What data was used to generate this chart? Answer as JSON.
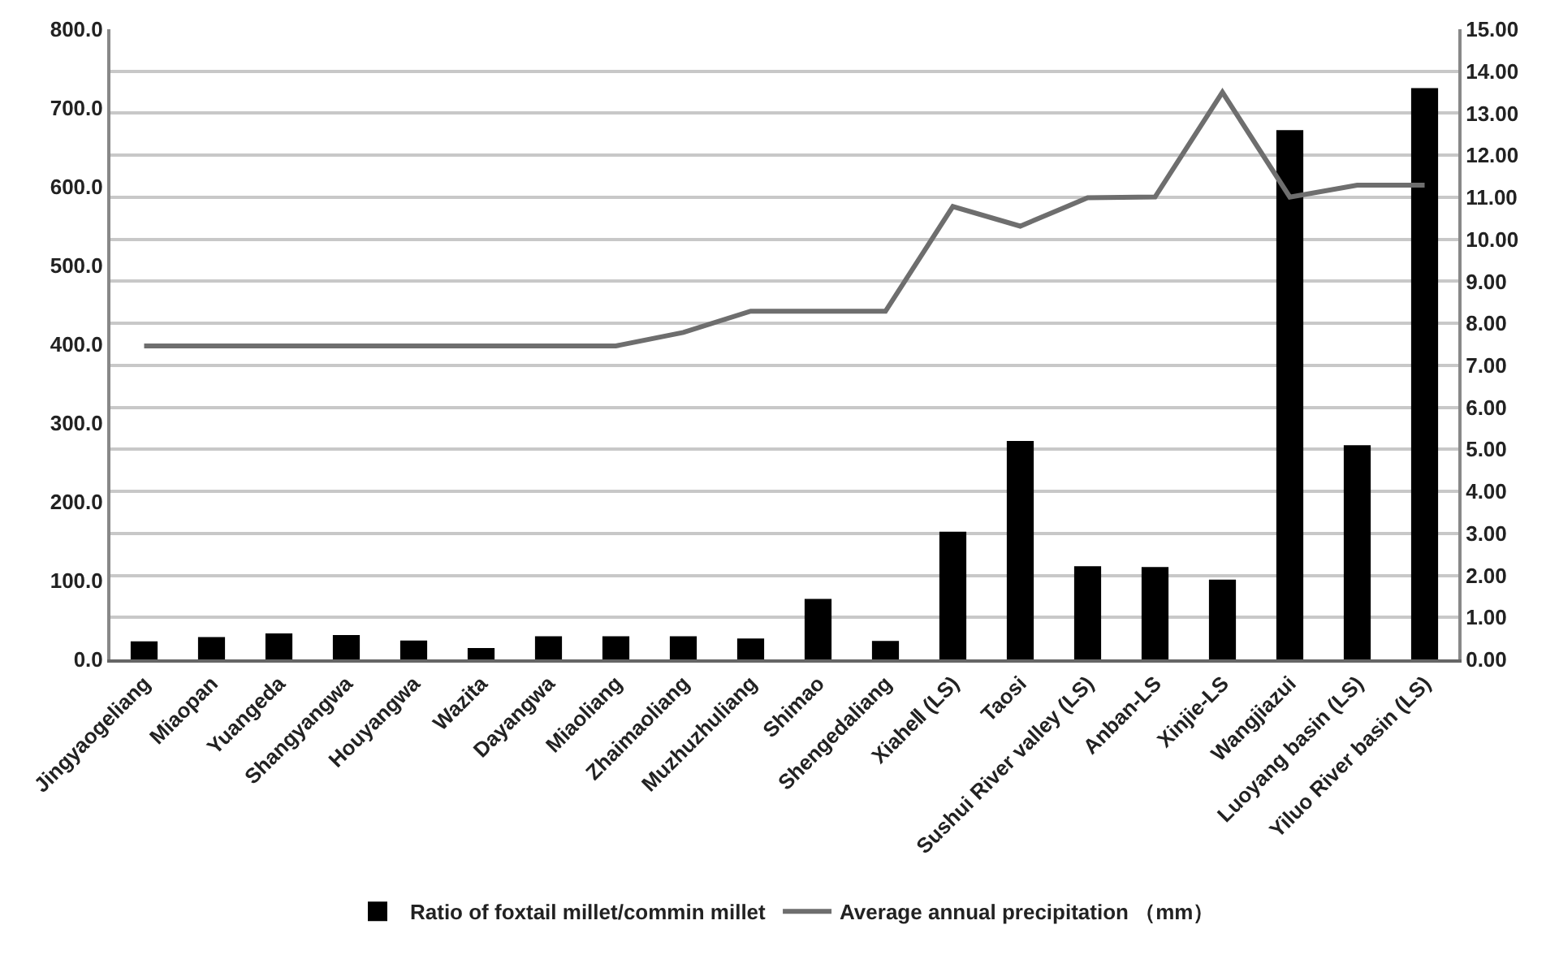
{
  "chart_data": {
    "type": "bar",
    "categories": [
      "Jingyaogeliang",
      "Miaopan",
      "Yuangeda",
      "Shangyangwa",
      "Houyangwa",
      "Wazita",
      "Dayangwa",
      "Miaoliang",
      "Zhaimaoliang",
      "Muzhuzhuliang",
      "Shimao",
      "Shengedaliang",
      "XiaheⅡ (LS)",
      "Taosi",
      "Sushui River valley (LS)",
      "Anban-LS",
      "Xinjie-LS",
      "Wangjiazui",
      "Luoyang basin (LS)",
      "Yiluo River basin (LS)"
    ],
    "series": [
      {
        "name": "Ratio of foxtail millet/commin millet",
        "axis": "y2",
        "color": "#000000",
        "values": [
          0.43,
          0.53,
          0.62,
          0.58,
          0.45,
          0.27,
          0.55,
          0.55,
          0.55,
          0.5,
          1.44,
          0.44,
          3.04,
          5.2,
          2.22,
          2.2,
          1.9,
          12.6,
          5.1,
          13.6
        ]
      },
      {
        "name": "Average annual precipitation （mm）",
        "type": "line",
        "axis": "y",
        "color": "#6e6e6e",
        "values": [
          398,
          398,
          398,
          398,
          398,
          398,
          398,
          398,
          415,
          442,
          442,
          442,
          575,
          550,
          586,
          587,
          720,
          587,
          602,
          602
        ]
      }
    ],
    "ylim": [
      0,
      800
    ],
    "yticks": [
      {
        "value": 0,
        "label": "0.0"
      },
      {
        "value": 100,
        "label": "100.0"
      },
      {
        "value": 200,
        "label": "200.0"
      },
      {
        "value": 300,
        "label": "300.0"
      },
      {
        "value": 400,
        "label": "400.0"
      },
      {
        "value": 500,
        "label": "500.0"
      },
      {
        "value": 600,
        "label": "600.0"
      },
      {
        "value": 700,
        "label": "700.0"
      },
      {
        "value": 800,
        "label": "800.0"
      }
    ],
    "y2lim": [
      0,
      15
    ],
    "y2ticks": [
      {
        "value": 0,
        "label": "0.00"
      },
      {
        "value": 1,
        "label": "1.00"
      },
      {
        "value": 2,
        "label": "2.00"
      },
      {
        "value": 3,
        "label": "3.00"
      },
      {
        "value": 4,
        "label": "4.00"
      },
      {
        "value": 5,
        "label": "5.00"
      },
      {
        "value": 6,
        "label": "6.00"
      },
      {
        "value": 7,
        "label": "7.00"
      },
      {
        "value": 8,
        "label": "8.00"
      },
      {
        "value": 9,
        "label": "9.00"
      },
      {
        "value": 10,
        "label": "10.00"
      },
      {
        "value": 11,
        "label": "11.00"
      },
      {
        "value": 12,
        "label": "12.00"
      },
      {
        "value": 13,
        "label": "13.00"
      },
      {
        "value": 14,
        "label": "14.00"
      },
      {
        "value": 15,
        "label": "15.00"
      }
    ],
    "grid": true,
    "legend": "bottom",
    "marker": "none",
    "line_style": "solid"
  }
}
